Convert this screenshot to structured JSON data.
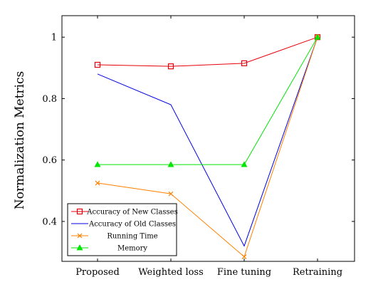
{
  "chart_data": {
    "type": "line",
    "categories": [
      "Proposed",
      "Weighted loss",
      "Fine tuning",
      "Retraining"
    ],
    "ylabel": "Normalization Metrics",
    "ylim": [
      0.27,
      1.07
    ],
    "yticks": [
      0.4,
      0.6,
      0.8,
      1
    ],
    "ytick_labels": [
      "0.4",
      "0.6",
      "0.8",
      "1"
    ],
    "legend_position": "bottom-left",
    "grid": false,
    "series": [
      {
        "name": "Accuracy of New Classes",
        "color": "#e8000b",
        "marker": "square",
        "values": [
          0.91,
          0.905,
          0.915,
          1.0
        ]
      },
      {
        "name": "Accuracy of Old Classes",
        "color": "#0000e6",
        "marker": "none",
        "values": [
          0.88,
          0.78,
          0.32,
          1.0
        ]
      },
      {
        "name": "Running Time",
        "color": "#ff8000",
        "marker": "x",
        "values": [
          0.525,
          0.49,
          0.285,
          1.0
        ]
      },
      {
        "name": "Memory",
        "color": "#00e600",
        "marker": "triangle",
        "values": [
          0.585,
          0.585,
          0.585,
          1.0
        ]
      }
    ]
  }
}
